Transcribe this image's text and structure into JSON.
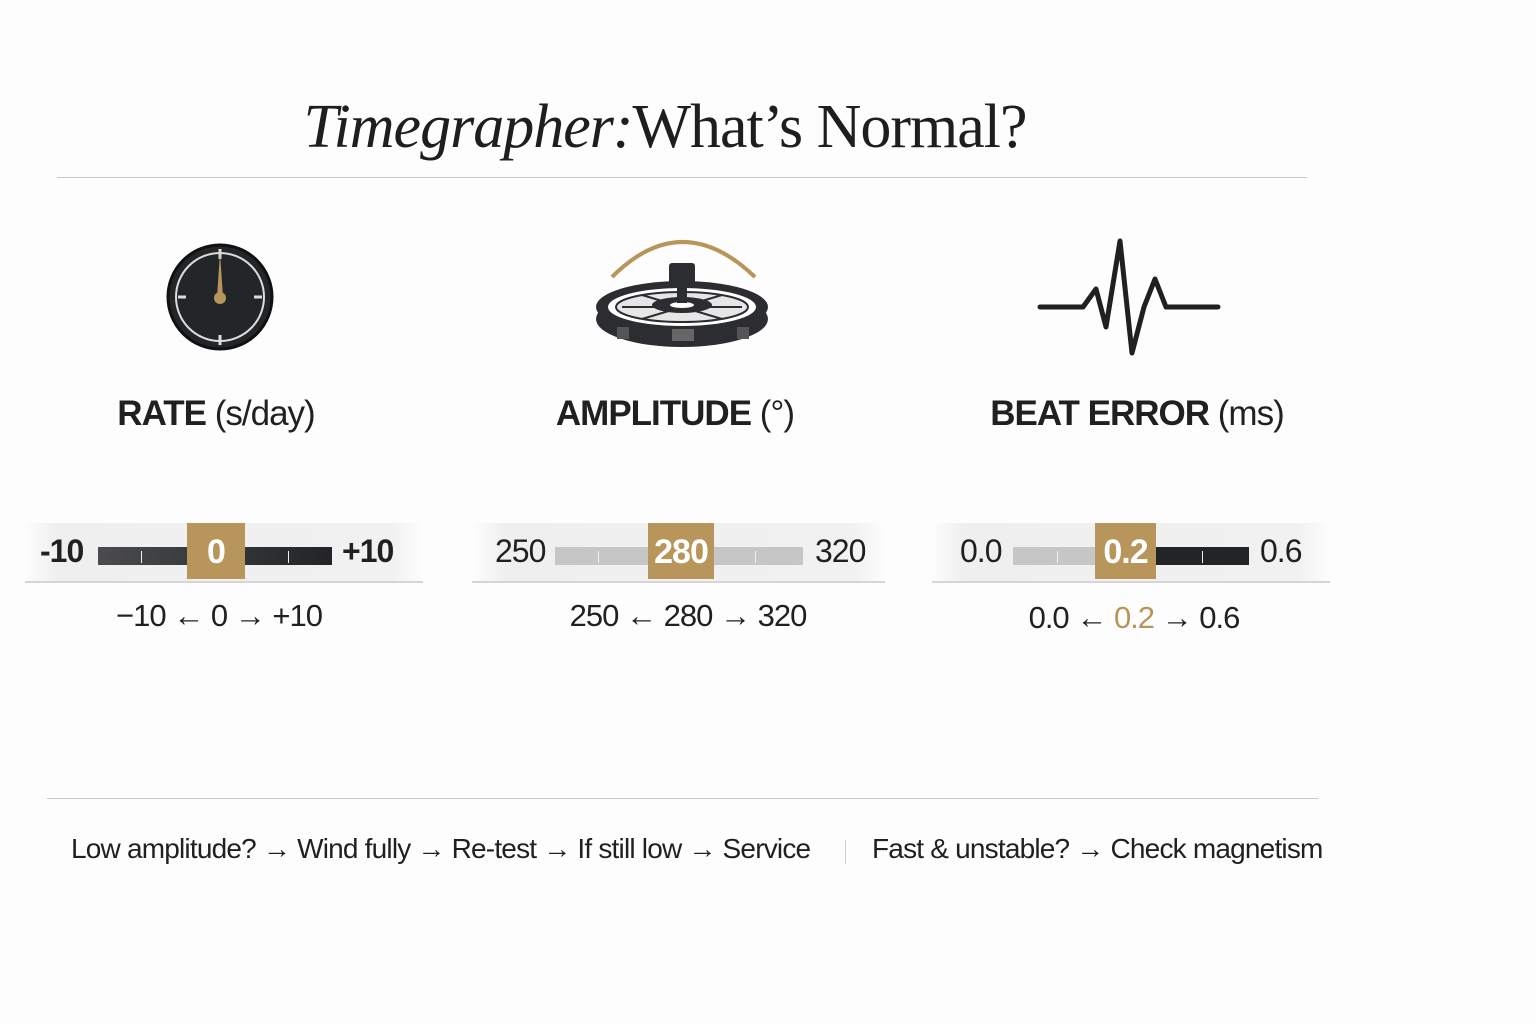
{
  "title": {
    "italic": "Timegrapher:",
    "rest": "What’s Normal?"
  },
  "accent_color": "#b8955a",
  "metrics": [
    {
      "name": "RATE",
      "unit": "(s/day)",
      "icon": "watch-dial-icon",
      "min": "-10",
      "target": "0",
      "max": "+10",
      "range_min": "−10",
      "range_target": "0",
      "range_max": "+10"
    },
    {
      "name": "AMPLITUDE",
      "unit": "(°)",
      "icon": "balance-wheel-icon",
      "min": "250",
      "target": "280",
      "max": "320",
      "range_min": "250",
      "range_target": "280",
      "range_max": "320"
    },
    {
      "name": "BEAT ERROR",
      "unit": "(ms)",
      "icon": "heartbeat-waveform-icon",
      "min": "0.0",
      "target": "0.2",
      "max": "0.6",
      "range_min": "0.0",
      "range_target": "0.2",
      "range_max": "0.6"
    }
  ],
  "arrows": {
    "left": "←",
    "right": "→"
  },
  "footer": {
    "left": "Low amplitude? → Wind fully → Re-test → If still low → Service",
    "right": "Fast & unstable? → Check magnetism"
  }
}
